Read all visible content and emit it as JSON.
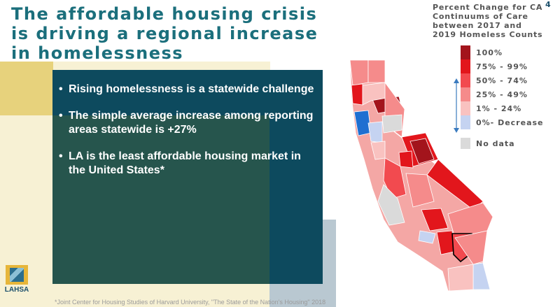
{
  "slide": {
    "title": "The affordable housing crisis is driving a regional increase in homelessness",
    "page_number": "4"
  },
  "bullets": [
    "Rising homelessness is a statewide challenge",
    "The simple average increase among reporting areas statewide is +27%",
    "LA is the least affordable housing market in the United States*"
  ],
  "footnote": "*Joint Center for Housing Studies of Harvard University, \"The State of the Nation's Housing\" 2018",
  "logo": {
    "text": "LAHSA"
  },
  "legend": {
    "title": "Percent Change for CA Continuums of Care between 2017 and 2019 Homeless Counts",
    "items": [
      {
        "label": "100%",
        "color": "#a3141c"
      },
      {
        "label": "75% - 99%",
        "color": "#e2161c"
      },
      {
        "label": "50% - 74%",
        "color": "#f24a4f"
      },
      {
        "label": "25% - 49%",
        "color": "#f58b8b"
      },
      {
        "label": "1% - 24%",
        "color": "#f9c2c0"
      },
      {
        "label": "0%- Decrease",
        "color": "#c5d3f1"
      }
    ],
    "no_data": {
      "label": "No data",
      "color": "#dadada"
    }
  },
  "colors": {
    "title": "#1b6f7c",
    "navy": "#0d4a5e",
    "green": "#26554d",
    "yellow": "#e7d27c",
    "cream": "#f7f1d4",
    "decrease_blue": "#1f6fd1"
  }
}
